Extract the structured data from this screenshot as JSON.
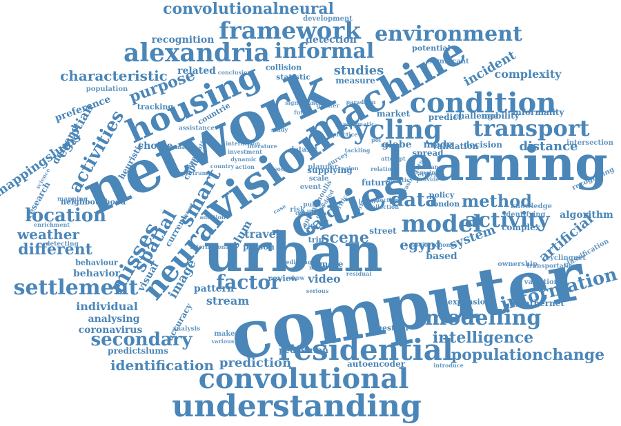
{
  "color": "#4a86b8",
  "words": [
    {
      "text": "computer",
      "rot": -10
    },
    {
      "text": "network",
      "rot": -25
    },
    {
      "text": "learning",
      "rot": 0
    },
    {
      "text": "urban",
      "rot": 0
    },
    {
      "text": "vision",
      "rot": -35
    },
    {
      "text": "machine",
      "rot": -30
    },
    {
      "text": "cities",
      "rot": -20
    },
    {
      "text": "understanding",
      "rot": 0
    },
    {
      "text": "convolutional",
      "rot": 0
    },
    {
      "text": "residential",
      "rot": 0
    },
    {
      "text": "housing",
      "rot": -25
    },
    {
      "text": "condition",
      "rot": 0
    },
    {
      "text": "cycling",
      "rot": 0
    },
    {
      "text": "neural",
      "rot": -50
    },
    {
      "text": "transport",
      "rot": 0
    },
    {
      "text": "alexandria",
      "rot": 0
    },
    {
      "text": "framework",
      "rot": 0
    },
    {
      "text": "environment",
      "rot": 0
    },
    {
      "text": "informal",
      "rot": 0
    },
    {
      "text": "model",
      "rot": 0
    },
    {
      "text": "activity",
      "rot": 0
    },
    {
      "text": "modelling",
      "rot": 0
    },
    {
      "text": "settlement",
      "rot": 0
    },
    {
      "text": "spatial",
      "rot": -60
    },
    {
      "text": "smart",
      "rot": -60
    },
    {
      "text": "misses",
      "rot": -60
    },
    {
      "text": "data",
      "rot": 0
    },
    {
      "text": "information",
      "rot": -15
    },
    {
      "text": "secondary",
      "rot": 0
    },
    {
      "text": "factor",
      "rot": 0
    },
    {
      "text": "location",
      "rot": 0
    },
    {
      "text": "activities",
      "rot": -60
    },
    {
      "text": "purpose",
      "rot": -20
    },
    {
      "text": "method",
      "rot": 0
    },
    {
      "text": "intelligence",
      "rot": 0
    },
    {
      "text": "populationchange",
      "rot": 0
    },
    {
      "text": "convolutionalneural",
      "rot": 0
    },
    {
      "text": "characteristic",
      "rot": 0
    },
    {
      "text": "card",
      "rot": -40
    },
    {
      "text": "egypt",
      "rot": 0
    },
    {
      "text": "scene",
      "rot": 0
    },
    {
      "text": "system",
      "rot": -20
    },
    {
      "text": "artificial",
      "rot": -40
    },
    {
      "text": "weather",
      "rot": 0
    },
    {
      "text": "different",
      "rot": 0
    },
    {
      "text": "identification",
      "rot": 0
    },
    {
      "text": "prediction",
      "rot": 0
    },
    {
      "text": "mappingslums",
      "rot": -35
    },
    {
      "text": "distance",
      "rot": 0
    },
    {
      "text": "studies",
      "rot": 0
    },
    {
      "text": "individual",
      "rot": 0
    },
    {
      "text": "egyptian",
      "rot": -60
    },
    {
      "text": "stream",
      "rot": 0
    },
    {
      "text": "image",
      "rot": -60
    },
    {
      "text": "incident",
      "rot": -30
    },
    {
      "text": "algorithm",
      "rot": 0
    },
    {
      "text": "detection",
      "rot": 0
    },
    {
      "text": "recognition",
      "rot": 0
    },
    {
      "text": "preference",
      "rot": -20
    },
    {
      "text": "demand",
      "rot": -60
    },
    {
      "text": "travel",
      "rot": 0
    },
    {
      "text": "slum",
      "rot": -60
    },
    {
      "text": "video",
      "rot": 0
    },
    {
      "text": "analysing",
      "rot": 0
    },
    {
      "text": "complexity",
      "rot": 0
    },
    {
      "text": "related",
      "rot": 0
    },
    {
      "text": "choice",
      "rot": 0
    },
    {
      "text": "based",
      "rot": 0
    },
    {
      "text": "behavior",
      "rot": 0
    },
    {
      "text": "pattern",
      "rot": 0
    },
    {
      "text": "coronavirus",
      "rot": 0
    },
    {
      "text": "predictslums",
      "rot": 0
    },
    {
      "text": "visual",
      "rot": -60
    },
    {
      "text": "current",
      "rot": -60
    },
    {
      "text": "research",
      "rot": -60
    },
    {
      "text": "review",
      "rot": 0
    },
    {
      "text": "street",
      "rot": 0
    },
    {
      "text": "measure",
      "rot": 0
    },
    {
      "text": "autoencoder",
      "rot": 0
    },
    {
      "text": "pedestrian",
      "rot": 0
    },
    {
      "text": "mode",
      "rot": 0
    },
    {
      "text": "globe",
      "rot": 0
    },
    {
      "text": "market",
      "rot": 0
    },
    {
      "text": "predict",
      "rot": 0
    },
    {
      "text": "challenge",
      "rot": 0
    },
    {
      "text": "mobility",
      "rot": 0
    },
    {
      "text": "informality",
      "rot": 0
    },
    {
      "text": "tracking",
      "rot": 0
    },
    {
      "text": "heuristic",
      "rot": -60
    },
    {
      "text": "capital",
      "rot": -60
    },
    {
      "text": "statistic",
      "rot": 0
    },
    {
      "text": "collision",
      "rot": 0
    },
    {
      "text": "potential",
      "rot": 0
    },
    {
      "text": "significant",
      "rot": 0
    },
    {
      "text": "development",
      "rot": 0
    },
    {
      "text": "population",
      "rot": 0
    },
    {
      "text": "conclusion",
      "rot": 0
    },
    {
      "text": "weathernet",
      "rot": 0
    },
    {
      "text": "ownership",
      "rot": 0
    },
    {
      "text": "cyclingnet",
      "rot": 0
    },
    {
      "text": "transportation",
      "rot": 0
    },
    {
      "text": "variational",
      "rot": 0
    },
    {
      "text": "classification",
      "rot": -30
    },
    {
      "text": "complex",
      "rot": 0
    },
    {
      "text": "identifying",
      "rot": 0
    },
    {
      "text": "knowledge",
      "rot": 0
    },
    {
      "text": "intersection",
      "rot": 0
    },
    {
      "text": "recognising",
      "rot": -25
    },
    {
      "text": "validation",
      "rot": 0
    },
    {
      "text": "decision",
      "rot": 0
    },
    {
      "text": "spread",
      "rot": 0
    },
    {
      "text": "policy",
      "rot": 0
    },
    {
      "text": "london",
      "rot": 0
    },
    {
      "text": "future",
      "rot": 0
    },
    {
      "text": "question",
      "rot": 0
    },
    {
      "text": "expansion",
      "rot": 0
    },
    {
      "text": "introduce",
      "rot": 0
    },
    {
      "text": "socioeconomic",
      "rot": 0
    },
    {
      "text": "infrastructure",
      "rot": -60
    },
    {
      "text": "accuracy",
      "rot": -60
    },
    {
      "text": "analysis",
      "rot": 0
    },
    {
      "text": "behaviour",
      "rot": 0
    },
    {
      "text": "detecting",
      "rot": 0
    },
    {
      "text": "enrichment",
      "rot": 0
    },
    {
      "text": "neighbourhood",
      "rot": 0
    },
    {
      "text": "mapping",
      "rot": 0
    },
    {
      "text": "science",
      "rot": -60
    },
    {
      "text": "application",
      "rot": -60
    },
    {
      "text": "semantic",
      "rot": 0
    },
    {
      "text": "assistance",
      "rot": 0
    },
    {
      "text": "countrie",
      "rot": -30
    },
    {
      "text": "planner",
      "rot": 0
    },
    {
      "text": "city",
      "rot": 0
    },
    {
      "text": "event",
      "rot": 0
    },
    {
      "text": "scale",
      "rot": 0
    },
    {
      "text": "social",
      "rot": 0
    },
    {
      "text": "country",
      "rot": 0
    },
    {
      "text": "action",
      "rot": 0
    },
    {
      "text": "dataset",
      "rot": 0
    },
    {
      "text": "region",
      "rot": 0
    },
    {
      "text": "survey",
      "rot": -30
    },
    {
      "text": "public",
      "rot": 0
    },
    {
      "text": "unit",
      "rot": 0
    },
    {
      "text": "risk",
      "rot": 0
    },
    {
      "text": "case",
      "rot": -30
    },
    {
      "text": "critical",
      "rot": -60
    },
    {
      "text": "work",
      "rot": -60
    },
    {
      "text": "more",
      "rot": 0
    },
    {
      "text": "novel",
      "rot": 0
    },
    {
      "text": "trip",
      "rot": 0
    },
    {
      "text": "person",
      "rot": 0
    },
    {
      "text": "show",
      "rot": 0
    },
    {
      "text": "serious",
      "rot": 0
    },
    {
      "text": "maker",
      "rot": 0
    },
    {
      "text": "various",
      "rot": 0
    },
    {
      "text": "residual",
      "rot": 0
    },
    {
      "text": "predicting",
      "rot": 0
    },
    {
      "text": "international",
      "rot": 0
    },
    {
      "text": "spectrum",
      "rot": 0
    },
    {
      "text": "interest",
      "rot": -60
    },
    {
      "text": "addition",
      "rot": 0
    },
    {
      "text": "supplying",
      "rot": 0
    },
    {
      "text": "autonomoulis",
      "rot": -60
    },
    {
      "text": "embedded",
      "rot": -60
    },
    {
      "text": "study",
      "rot": 0
    },
    {
      "text": "mis",
      "rot": 0
    },
    {
      "text": "poi",
      "rot": 0
    },
    {
      "text": "tackling",
      "rot": 0
    },
    {
      "text": "attempt",
      "rot": 0
    },
    {
      "text": "provide",
      "rot": 0
    },
    {
      "text": "remain",
      "rot": 0
    },
    {
      "text": "human",
      "rot": 0
    },
    {
      "text": "relation",
      "rot": 0
    },
    {
      "text": "analytic",
      "rot": 0
    },
    {
      "text": "selection",
      "rot": 0
    },
    {
      "text": "paradigm",
      "rot": 0
    },
    {
      "text": "greater",
      "rot": 0
    },
    {
      "text": "future",
      "rot": 0
    },
    {
      "text": "significance",
      "rot": 0
    },
    {
      "text": "investment",
      "rot": 0
    },
    {
      "text": "dynamic",
      "rot": 0
    },
    {
      "text": "interaction",
      "rot": 0
    },
    {
      "text": "literature",
      "rot": 0
    },
    {
      "text": "evidence",
      "rot": 0
    },
    {
      "text": "collection",
      "rot": 0
    },
    {
      "text": "practice",
      "rot": 0
    },
    {
      "text": "pragmatic",
      "rot": 0
    },
    {
      "text": "leisure",
      "rot": 0
    },
    {
      "text": "physical",
      "rot": 0
    },
    {
      "text": "consumer",
      "rot": 0
    },
    {
      "text": "major",
      "rot": 0
    }
  ]
}
